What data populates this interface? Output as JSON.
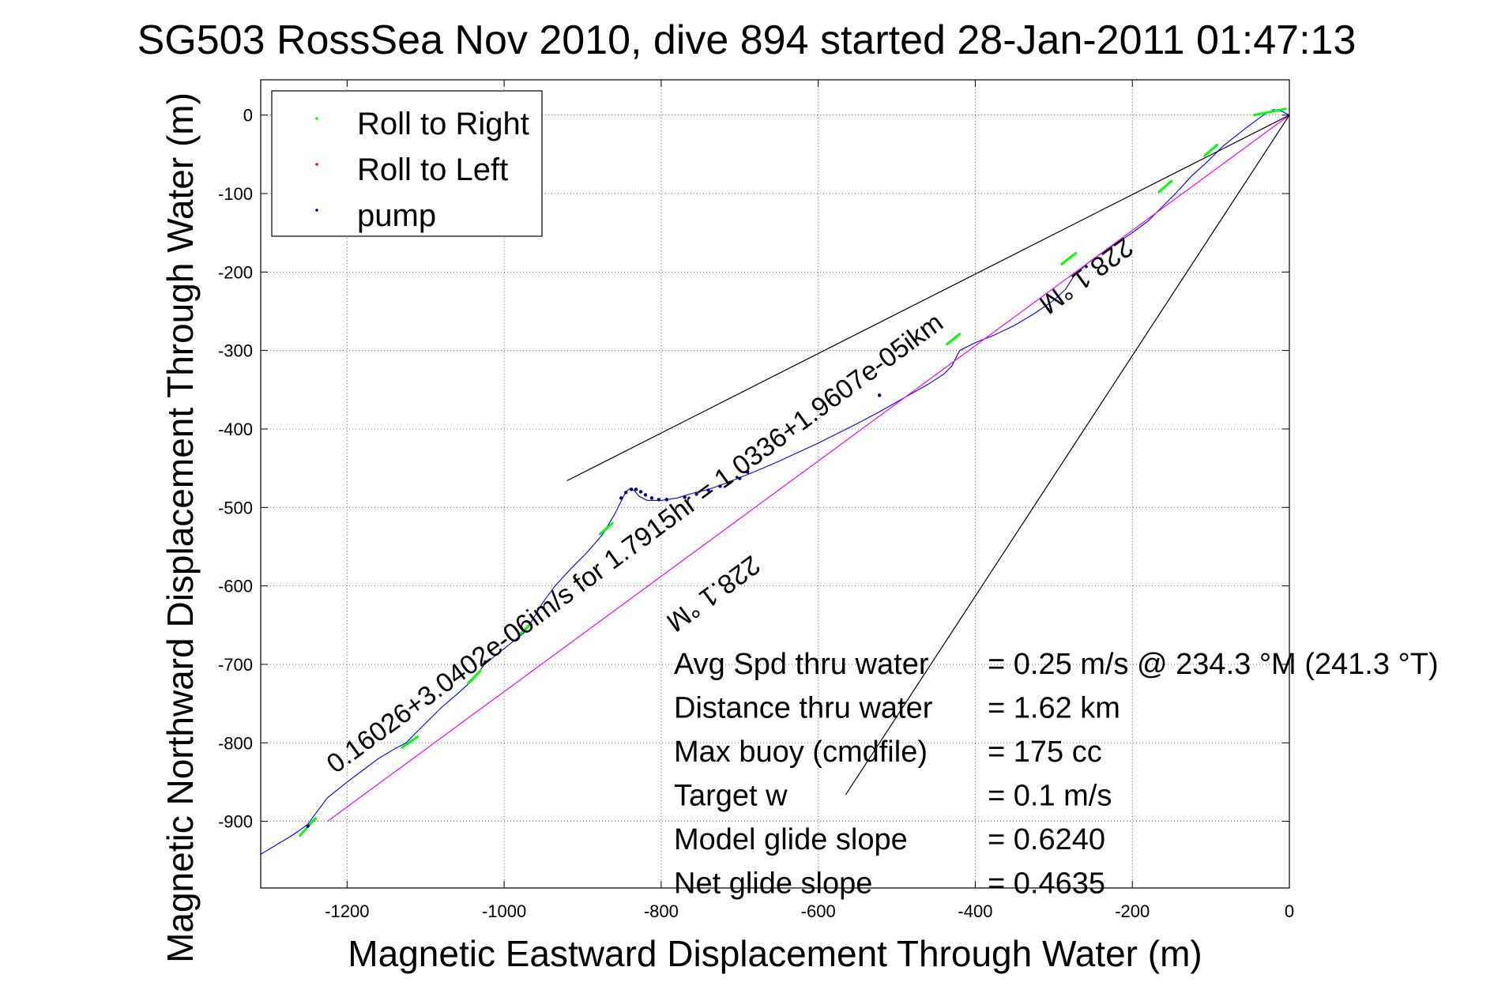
{
  "chart_data": {
    "type": "line",
    "title": "SG503 RossSea Nov 2010, dive 894 started 28-Jan-2011 01:47:13",
    "xlabel": "Magnetic Eastward Displacement Through Water (m)",
    "ylabel": "Magnetic Northward Displacement Through Water (m)",
    "xlim": [
      -1310,
      0
    ],
    "ylim": [
      -985,
      45
    ],
    "xticks": [
      -1200,
      -1000,
      -800,
      -600,
      -400,
      -200,
      0
    ],
    "yticks": [
      0,
      -100,
      -200,
      -300,
      -400,
      -500,
      -600,
      -700,
      -800,
      -900
    ],
    "grid": true,
    "legend_position": "top-left",
    "legend": [
      {
        "label": "Roll to Right",
        "color": "#00ff00"
      },
      {
        "label": "Roll to Left",
        "color": "#ff0000"
      },
      {
        "label": "pump",
        "color": "#000080"
      }
    ],
    "series": [
      {
        "name": "track",
        "color": "#0000ff",
        "x": [
          -1310,
          -1290,
          -1270,
          -1250,
          -1240,
          -1225,
          -1200,
          -1180,
          -1160,
          -1140,
          -1125,
          -1115,
          -1100,
          -1080,
          -1060,
          -1040,
          -1025,
          -1010,
          -990,
          -975,
          -965,
          -950,
          -935,
          -915,
          -895,
          -875,
          -860,
          -850,
          -845,
          -840,
          -835,
          -828,
          -818,
          -800,
          -780,
          -760,
          -740,
          -720,
          -700,
          -680,
          -650,
          -600,
          -550,
          -520,
          -490,
          -460,
          -440,
          -430,
          -420,
          -400,
          -375,
          -350,
          -325,
          -300,
          -285,
          -275,
          -255,
          -230,
          -200,
          -180,
          -165,
          -145,
          -125,
          -105,
          -85,
          -60,
          -40,
          -30,
          -20,
          -10,
          0
        ],
        "y": [
          -942,
          -930,
          -918,
          -904,
          -890,
          -870,
          -850,
          -835,
          -820,
          -808,
          -800,
          -790,
          -775,
          -755,
          -738,
          -720,
          -700,
          -688,
          -672,
          -660,
          -645,
          -620,
          -600,
          -578,
          -558,
          -535,
          -510,
          -490,
          -480,
          -476,
          -478,
          -486,
          -491,
          -491,
          -488,
          -482,
          -477,
          -470,
          -462,
          -454,
          -441,
          -418,
          -393,
          -377,
          -360,
          -343,
          -330,
          -320,
          -300,
          -290,
          -280,
          -268,
          -253,
          -236,
          -222,
          -206,
          -187,
          -170,
          -150,
          -135,
          -120,
          -100,
          -78,
          -60,
          -40,
          -20,
          -5,
          2,
          7,
          5,
          0
        ]
      },
      {
        "name": "straight track",
        "color": "#ff00ff",
        "x": [
          -1225,
          0
        ],
        "y": [
          -900,
          0
        ]
      },
      {
        "name": "bearing 1",
        "color": "#000000",
        "x": [
          -920,
          0
        ],
        "y": [
          -466,
          0
        ]
      },
      {
        "name": "bearing 2",
        "color": "#000000",
        "x": [
          -565,
          0
        ],
        "y": [
          -866,
          0
        ]
      }
    ],
    "roll_right_points": [
      {
        "x": [
          -1260,
          -1240
        ],
        "y": [
          -918,
          -896
        ]
      },
      {
        "x": [
          -1130,
          -1110
        ],
        "y": [
          -806,
          -792
        ]
      },
      {
        "x": [
          -1046,
          -1030
        ],
        "y": [
          -724,
          -708
        ]
      },
      {
        "x": [
          -980,
          -966
        ],
        "y": [
          -662,
          -648
        ]
      },
      {
        "x": [
          -878,
          -862
        ],
        "y": [
          -534,
          -520
        ]
      },
      {
        "x": [
          -436,
          -420
        ],
        "y": [
          -292,
          -279
        ]
      },
      {
        "x": [
          -290,
          -272
        ],
        "y": [
          -190,
          -176
        ]
      },
      {
        "x": [
          -166,
          -150
        ],
        "y": [
          -98,
          -84
        ]
      },
      {
        "x": [
          -108,
          -92
        ],
        "y": [
          -52,
          -38
        ]
      },
      {
        "x": [
          -45,
          -5
        ],
        "y": [
          0,
          8
        ]
      }
    ],
    "pump_points": {
      "x": [
        -1250,
        -1024,
        -851,
        -845,
        -838,
        -832,
        -826,
        -820,
        -812,
        -803,
        -793,
        -770,
        -755,
        -740,
        -725,
        -712,
        -700,
        -690,
        -522
      ],
      "y": [
        -906,
        -697,
        -488,
        -481,
        -477,
        -477,
        -480,
        -484,
        -488,
        -490,
        -490,
        -487,
        -483,
        -478,
        -473,
        -468,
        -463,
        -455,
        -357
      ]
    },
    "annotations": [
      {
        "text": "0.16026+3.0402e-06im/s for 1.7915hr = 1.0336+1.9607e-05ikm",
        "x": -1215,
        "y": -840,
        "angle_deg": -36.3
      },
      {
        "text": "228.1 °M",
        "x": -685,
        "y": -560,
        "angle_deg": 143.7
      },
      {
        "text": "228.1 °M",
        "x": -210,
        "y": -155,
        "angle_deg": 143.7
      }
    ],
    "stats": [
      {
        "label": "Avg Spd thru water",
        "value": "=  0.25 m/s @ 234.3 °M (241.3 °T)"
      },
      {
        "label": "Distance thru water",
        "value": "=  1.62 km"
      },
      {
        "label": "Max buoy (cmdfile)",
        "value": "= 175 cc"
      },
      {
        "label": "Target w",
        "value": "= 0.1 m/s"
      },
      {
        "label": "Model glide slope",
        "value": "= 0.6240"
      },
      {
        "label": "Net glide slope",
        "value": "= 0.4635"
      }
    ]
  }
}
